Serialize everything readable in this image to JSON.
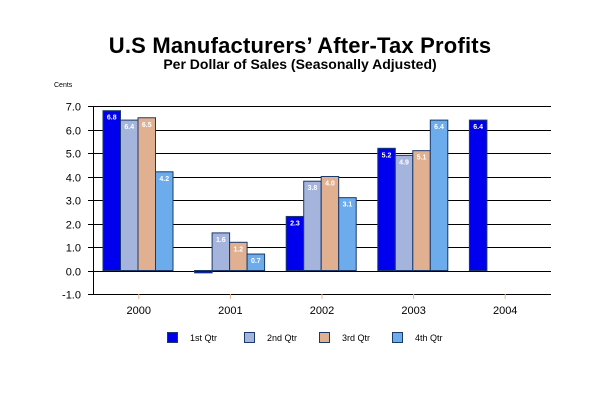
{
  "chart_data": {
    "type": "bar",
    "title": "U.S Manufacturers’ After-Tax Profits",
    "subtitle": "Per Dollar of Sales (Seasonally Adjusted)",
    "ylabel": "Cents",
    "xlabel": "",
    "ylim": [
      -1.0,
      7.0
    ],
    "yticks": [
      "7.0",
      "6.0",
      "5.0",
      "4.0",
      "3.0",
      "2.0",
      "1.0",
      "0.0",
      "-1.0"
    ],
    "ytick_values": [
      7,
      6,
      5,
      4,
      3,
      2,
      1,
      0,
      -1
    ],
    "grid": true,
    "legend_position": "bottom",
    "categories": [
      "2000",
      "2001",
      "2002",
      "2003",
      "2004"
    ],
    "series": [
      {
        "name": "1st Qtr",
        "color": "#0000ee",
        "values": [
          6.8,
          -0.1,
          2.3,
          5.2,
          6.4
        ],
        "labels": [
          "6.8",
          "",
          "2.3",
          "5.2",
          "6.4"
        ]
      },
      {
        "name": "2nd Qtr",
        "color": "#a4b4dc",
        "values": [
          6.4,
          1.6,
          3.8,
          4.9,
          null
        ],
        "labels": [
          "6.4",
          "1.6",
          "3.8",
          "4.9",
          ""
        ]
      },
      {
        "name": "3rd Qtr",
        "color": "#e0b090",
        "values": [
          6.5,
          1.2,
          4.0,
          5.1,
          null
        ],
        "labels": [
          "6.5",
          "1.2",
          "4.0",
          "5.1",
          ""
        ]
      },
      {
        "name": "4th Qtr",
        "color": "#6cacec",
        "values": [
          4.2,
          0.7,
          3.1,
          6.4,
          null
        ],
        "labels": [
          "4.2",
          "0.7",
          "3.1",
          "6.4",
          ""
        ]
      }
    ]
  }
}
